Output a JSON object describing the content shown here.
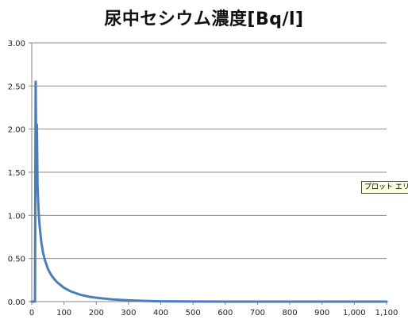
{
  "chart_data": {
    "type": "line",
    "title": "尿中セシウム濃度[Bq/l]",
    "xlabel": "",
    "ylabel": "",
    "xlim": [
      0,
      1100
    ],
    "ylim": [
      0,
      3
    ],
    "x_ticks": [
      0,
      100,
      200,
      300,
      400,
      500,
      600,
      700,
      800,
      900,
      1000,
      1100
    ],
    "x_tick_labels": [
      "0",
      "100",
      "200",
      "300",
      "400",
      "500",
      "600",
      "700",
      "800",
      "900",
      "1,000",
      "1,100"
    ],
    "y_ticks": [
      0,
      0.5,
      1,
      1.5,
      2,
      2.5,
      3
    ],
    "y_tick_labels": [
      "0.00",
      "0.50",
      "1.00",
      "1.50",
      "2.00",
      "2.50",
      "3.00"
    ],
    "grid": "horizontal",
    "legend": "none",
    "series": [
      {
        "color": "#4a7ebb",
        "x": [
          0,
          10,
          12,
          14,
          16,
          18,
          20,
          22,
          25,
          30,
          35,
          40,
          50,
          60,
          70,
          80,
          100,
          120,
          150,
          180,
          200,
          250,
          300,
          350,
          400,
          500,
          600,
          700,
          800,
          900,
          1000,
          1100
        ],
        "y": [
          0,
          0,
          2.55,
          1.6,
          2.05,
          1.35,
          1.15,
          1.0,
          0.85,
          0.68,
          0.57,
          0.49,
          0.38,
          0.31,
          0.26,
          0.22,
          0.16,
          0.12,
          0.08,
          0.055,
          0.045,
          0.025,
          0.015,
          0.008,
          0.004,
          0.001,
          0,
          0,
          0,
          0,
          0,
          0
        ]
      }
    ]
  },
  "tooltip": {
    "text": "プロット エリア"
  }
}
